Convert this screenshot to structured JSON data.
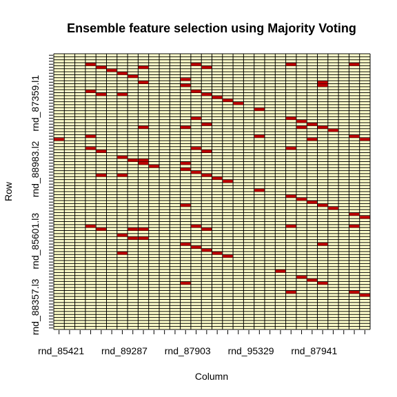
{
  "chart_data": {
    "type": "heatmap",
    "title": "Ensemble feature selection  using Majority Voting",
    "xlabel": "Column",
    "ylabel": "Row",
    "n_rows": 92,
    "n_cols": 30,
    "x_tick_labels": [
      "rnd_85421",
      "rnd_89287",
      "rnd_87903",
      "rnd_95329",
      "rnd_87941"
    ],
    "x_tick_columns": [
      0,
      6,
      12,
      18,
      24
    ],
    "y_tick_labels": [
      "rnd_87359.l1",
      "rnd_88983.l2",
      "rnd_85601.l3",
      "rnd_88357.l3"
    ],
    "y_tick_rows": [
      16,
      38,
      62,
      84
    ],
    "colors": {
      "unselected": "#ffffcc",
      "selected": "#bd0000",
      "grid": "#000000"
    },
    "selected_cells": [
      [
        3,
        3
      ],
      [
        3,
        13
      ],
      [
        3,
        22
      ],
      [
        3,
        28
      ],
      [
        4,
        4
      ],
      [
        4,
        8
      ],
      [
        4,
        14
      ],
      [
        5,
        5
      ],
      [
        6,
        6
      ],
      [
        7,
        7
      ],
      [
        8,
        12
      ],
      [
        9,
        8
      ],
      [
        9,
        25
      ],
      [
        10,
        12
      ],
      [
        10,
        25
      ],
      [
        12,
        3
      ],
      [
        12,
        13
      ],
      [
        13,
        4
      ],
      [
        13,
        6
      ],
      [
        13,
        14
      ],
      [
        14,
        15
      ],
      [
        15,
        16
      ],
      [
        16,
        17
      ],
      [
        18,
        19
      ],
      [
        21,
        13
      ],
      [
        21,
        22
      ],
      [
        22,
        23
      ],
      [
        23,
        14
      ],
      [
        23,
        24
      ],
      [
        24,
        8
      ],
      [
        24,
        12
      ],
      [
        24,
        23
      ],
      [
        24,
        25
      ],
      [
        25,
        26
      ],
      [
        27,
        3
      ],
      [
        27,
        19
      ],
      [
        27,
        28
      ],
      [
        28,
        0
      ],
      [
        28,
        24
      ],
      [
        28,
        29
      ],
      [
        31,
        3
      ],
      [
        31,
        13
      ],
      [
        31,
        22
      ],
      [
        32,
        4
      ],
      [
        32,
        14
      ],
      [
        34,
        6
      ],
      [
        35,
        7
      ],
      [
        35,
        8
      ],
      [
        36,
        8
      ],
      [
        36,
        12
      ],
      [
        37,
        9
      ],
      [
        38,
        12
      ],
      [
        39,
        13
      ],
      [
        40,
        4
      ],
      [
        40,
        6
      ],
      [
        40,
        14
      ],
      [
        41,
        15
      ],
      [
        42,
        16
      ],
      [
        45,
        19
      ],
      [
        47,
        22
      ],
      [
        48,
        23
      ],
      [
        49,
        24
      ],
      [
        50,
        12
      ],
      [
        50,
        25
      ],
      [
        51,
        26
      ],
      [
        53,
        28
      ],
      [
        54,
        29
      ],
      [
        57,
        3
      ],
      [
        57,
        13
      ],
      [
        57,
        22
      ],
      [
        57,
        28
      ],
      [
        58,
        4
      ],
      [
        58,
        7
      ],
      [
        58,
        8
      ],
      [
        58,
        14
      ],
      [
        60,
        6
      ],
      [
        61,
        7
      ],
      [
        61,
        8
      ],
      [
        63,
        12
      ],
      [
        63,
        25
      ],
      [
        64,
        13
      ],
      [
        65,
        14
      ],
      [
        66,
        6
      ],
      [
        66,
        15
      ],
      [
        67,
        16
      ],
      [
        72,
        21
      ],
      [
        74,
        23
      ],
      [
        75,
        24
      ],
      [
        76,
        12
      ],
      [
        76,
        25
      ],
      [
        79,
        22
      ],
      [
        79,
        28
      ],
      [
        80,
        29
      ]
    ]
  }
}
